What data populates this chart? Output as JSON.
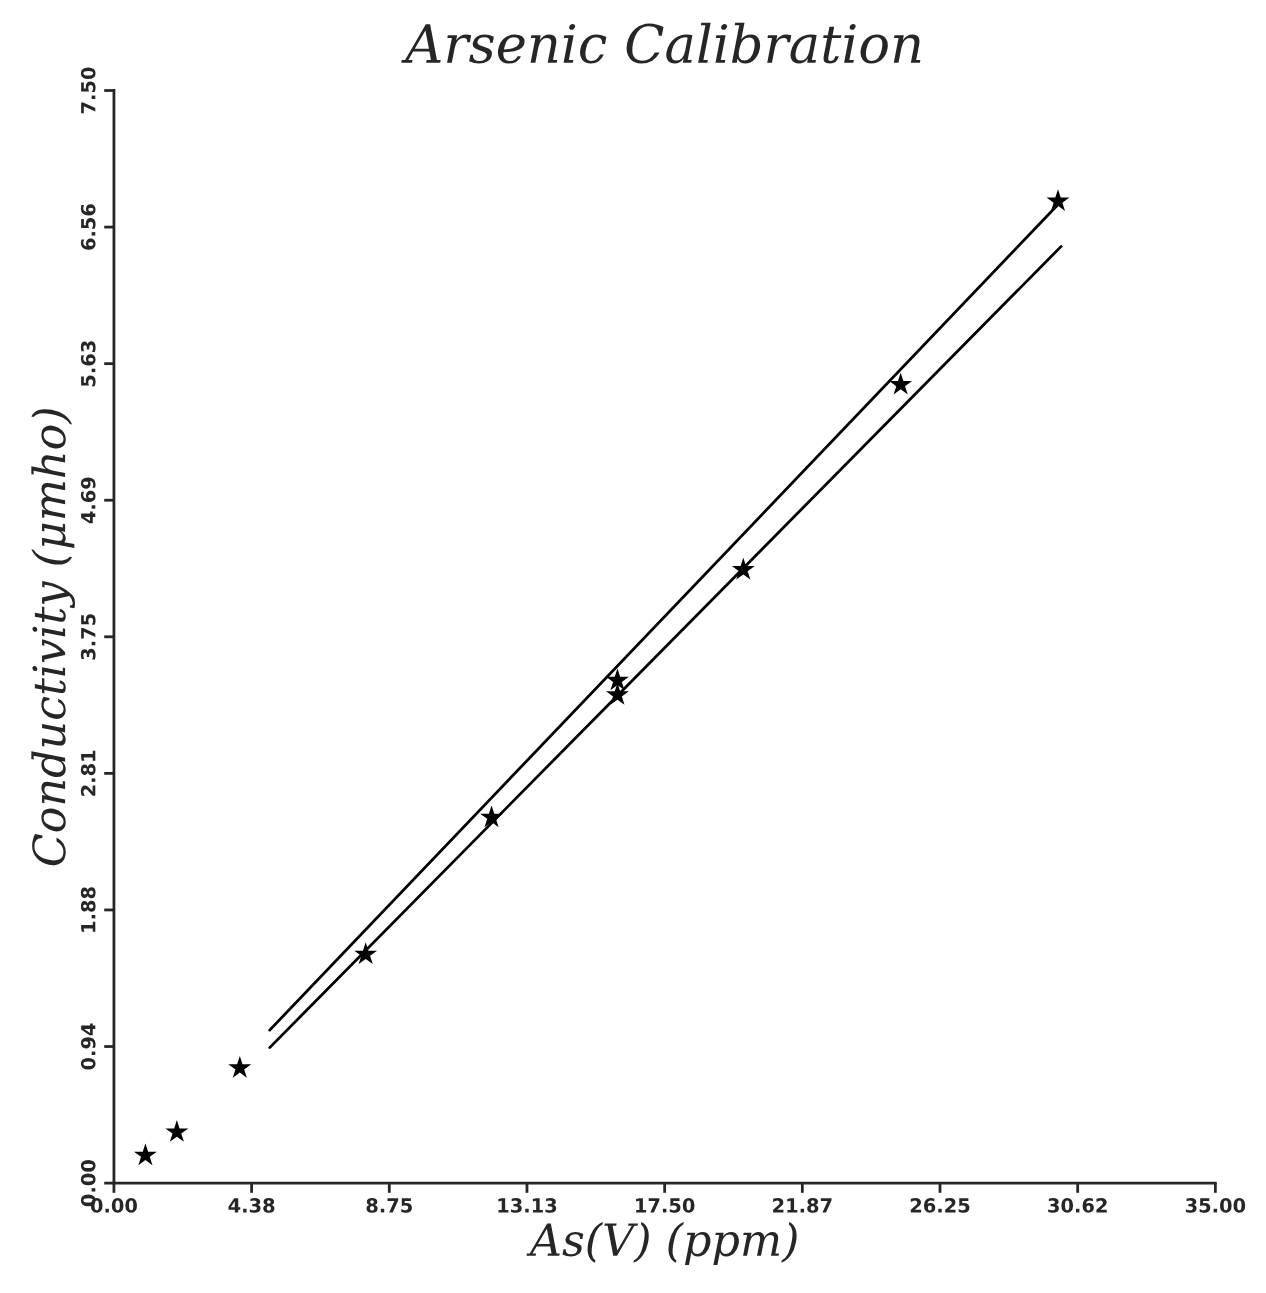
{
  "chart_data": {
    "type": "scatter",
    "title": "Arsenic Calibration",
    "xlabel": "As(V) (ppm)",
    "ylabel": "Conductivity (μmho)",
    "xlim": [
      0,
      35
    ],
    "ylim": [
      0,
      7.5
    ],
    "xticks": [
      {
        "value": 0,
        "label": "0.00"
      },
      {
        "value": 4.375,
        "label": "4.38"
      },
      {
        "value": 8.75,
        "label": "8.75"
      },
      {
        "value": 13.125,
        "label": "13.13"
      },
      {
        "value": 17.5,
        "label": "17.50"
      },
      {
        "value": 21.875,
        "label": "21.87"
      },
      {
        "value": 26.25,
        "label": "26.25"
      },
      {
        "value": 30.625,
        "label": "30.62"
      },
      {
        "value": 35,
        "label": "35.00"
      }
    ],
    "yticks": [
      {
        "value": 0,
        "label": "0.00"
      },
      {
        "value": 0.9375,
        "label": "0.94"
      },
      {
        "value": 1.875,
        "label": "1.88"
      },
      {
        "value": 2.8125,
        "label": "2.81"
      },
      {
        "value": 3.75,
        "label": "3.75"
      },
      {
        "value": 4.6875,
        "label": "4.69"
      },
      {
        "value": 5.625,
        "label": "5.63"
      },
      {
        "value": 6.5625,
        "label": "6.56"
      },
      {
        "value": 7.5,
        "label": "7.50"
      }
    ],
    "grid": false,
    "legend": false,
    "series": [
      {
        "marker": "star",
        "color": "#000000",
        "x": [
          1,
          2,
          4,
          8,
          12,
          16,
          16,
          20,
          25,
          30
        ],
        "values": [
          0.19,
          0.35,
          0.79,
          1.57,
          2.51,
          3.45,
          3.35,
          4.21,
          5.48,
          6.74
        ]
      },
      {
        "type": "line",
        "marker": "none",
        "line_style": "solid",
        "color": "#000000",
        "x": [
          4.95,
          30.1
        ],
        "values": [
          1.05,
          6.74
        ]
      },
      {
        "type": "line",
        "marker": "none",
        "line_style": "solid",
        "color": "#000000",
        "x": [
          4.95,
          30.1
        ],
        "values": [
          0.93,
          6.43
        ]
      }
    ]
  }
}
